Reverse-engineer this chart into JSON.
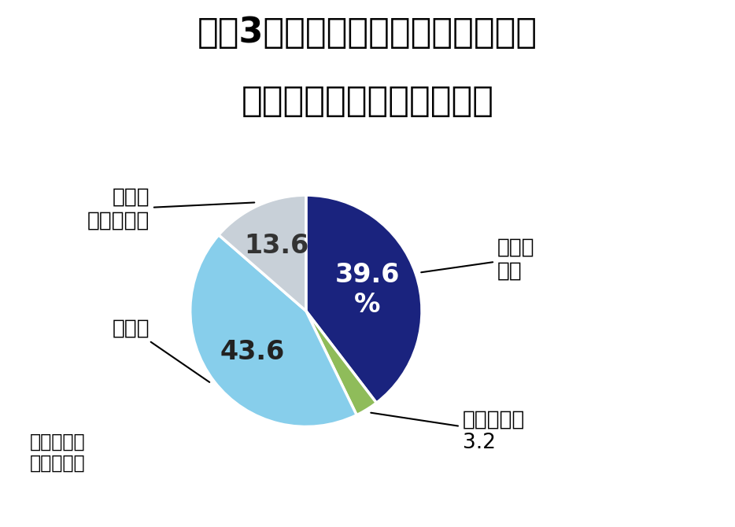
{
  "title_line1": "過去3年間でメンタルヘルス関連の",
  "title_line2": "疾病を発症した従業員の数",
  "slices": [
    {
      "label": "増えて\nいる",
      "value": 39.6,
      "color": "#1a237e",
      "text_in": "39.6\n%",
      "text_color_in": "white"
    },
    {
      "label": "減っている\n3.2",
      "value": 3.2,
      "color": "#8fbc5a",
      "text_in": "",
      "text_color_in": "white"
    },
    {
      "label": "横ばい",
      "value": 43.6,
      "color": "#87ceeb",
      "text_in": "43.6",
      "text_color_in": "#222222"
    },
    {
      "label": "不明や\n無回答など",
      "value": 13.6,
      "color": "#c8d0d8",
      "text_in": "13.6",
      "text_color_in": "#333333"
    }
  ],
  "source": "（住友生命\n保険調べ）",
  "background_color": "#ffffff",
  "title_fontsize": 32,
  "label_fontsize": 19,
  "value_fontsize": 24,
  "source_fontsize": 17
}
